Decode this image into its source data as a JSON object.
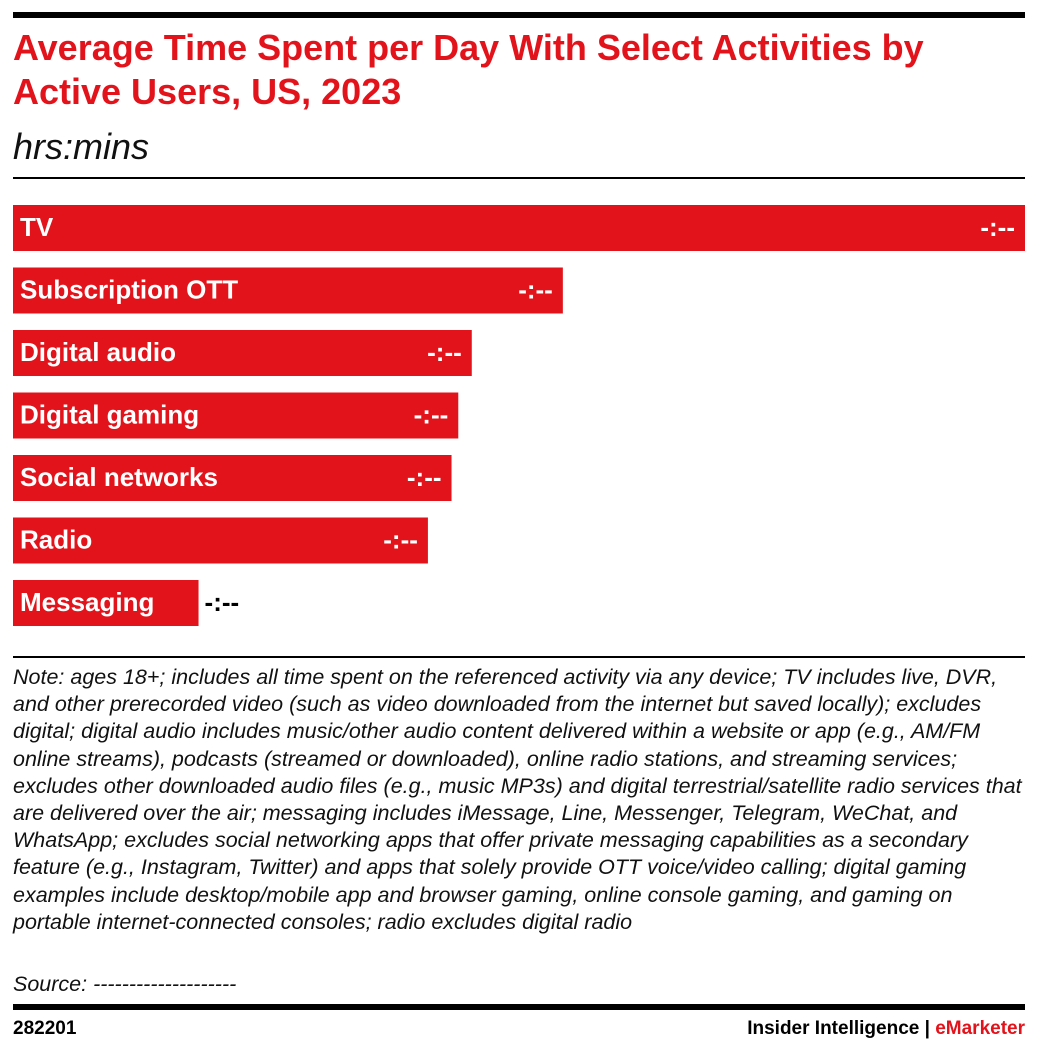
{
  "chart_data": {
    "type": "bar",
    "orientation": "horizontal",
    "title": "Average Time Spent per Day With Select Activities by Active Users, US, 2023",
    "subtitle": "hrs:mins",
    "categories": [
      "TV",
      "Subscription OTT",
      "Digital audio",
      "Digital gaming",
      "Social networks",
      "Radio",
      "Messaging"
    ],
    "values": [
      3.0,
      1.63,
      1.36,
      1.32,
      1.3,
      1.23,
      0.55
    ],
    "value_labels": [
      "-:--",
      "-:--",
      "-:--",
      "-:--",
      "-:--",
      "-:--",
      "-:--"
    ],
    "color": "#e3131b",
    "note": "Note: ages 18+; includes all time spent on the referenced activity via any device; TV includes live, DVR, and other prerecorded video (such as video downloaded from the internet but saved locally); excludes digital; digital audio includes music/other audio content delivered within a website or app (e.g., AM/FM online streams), podcasts (streamed or downloaded), online radio stations, and streaming services; excludes other downloaded audio files (e.g., music MP3s) and digital terrestrial/satellite radio services that are delivered over the air; messaging includes iMessage, Line, Messenger, Telegram, WeChat, and WhatsApp; excludes social networking apps that offer private messaging capabilities as a secondary feature (e.g., Instagram, Twitter) and apps that solely provide OTT voice/video calling; digital gaming examples include desktop/mobile app and browser gaming, online console gaming, and gaming on portable internet-connected consoles; radio excludes digital radio",
    "source": "Source: --------------------",
    "footer": {
      "id": "282201",
      "brand": "Insider Intelligence",
      "separator": "|",
      "brand_accent": "eMarketer"
    }
  }
}
